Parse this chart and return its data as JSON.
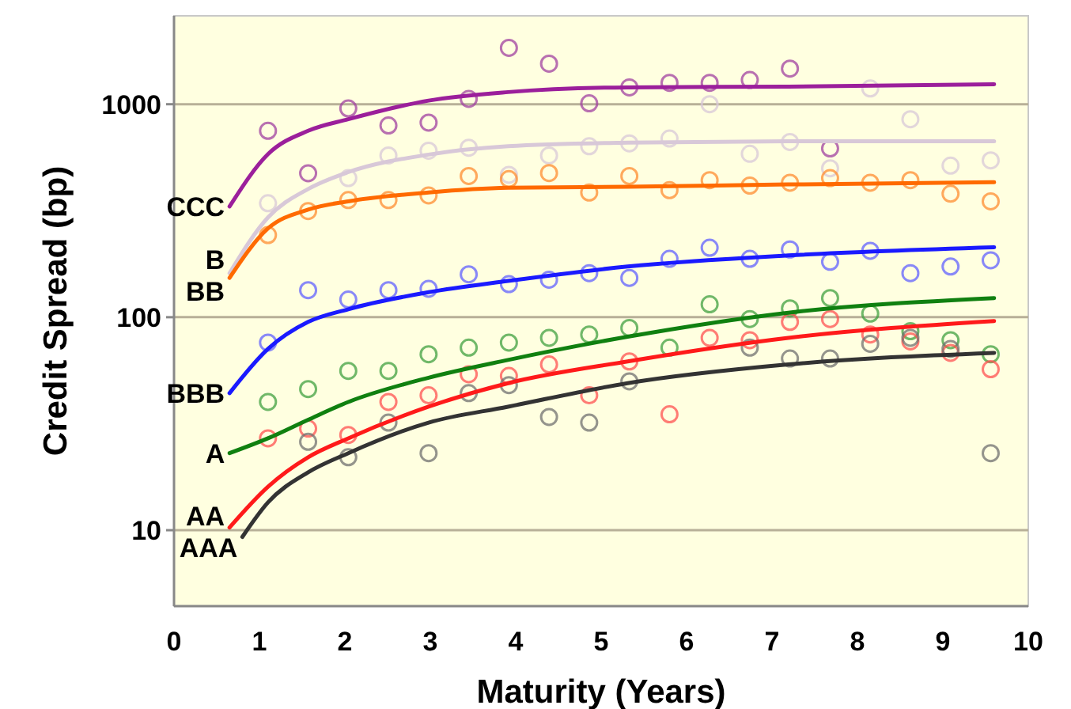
{
  "chart_data": {
    "type": "scatter",
    "xlabel": "Maturity (Years)",
    "ylabel": "Credit Spread (bp)",
    "log": "y",
    "grid": "y",
    "xlim": [
      0,
      10
    ],
    "xticks": [
      0,
      1,
      2,
      3,
      4,
      5,
      6,
      7,
      8,
      9,
      10
    ],
    "ylim": [
      4.4,
      2600
    ],
    "yticks": [
      10,
      100,
      1000
    ],
    "x": [
      1.1,
      1.57,
      2.04,
      2.51,
      2.98,
      3.45,
      3.92,
      4.39,
      4.86,
      5.33,
      5.8,
      6.27,
      6.74,
      7.21,
      7.68,
      8.15,
      8.62,
      9.09,
      9.56
    ],
    "series": [
      {
        "type": "scatter",
        "marker": "circle",
        "color": "#a040a0",
        "values": [
          750,
          474,
          955,
          795,
          820,
          1060,
          1840,
          1550,
          1010,
          1200,
          1260,
          1260,
          1300,
          1470,
          620,
          null,
          null,
          null,
          null
        ]
      },
      {
        "type": "scatter",
        "marker": "circle",
        "color": "#d8c8d8",
        "values": [
          343,
          null,
          450,
          575,
          605,
          625,
          466,
          575,
          635,
          655,
          690,
          1000,
          585,
          665,
          500,
          1185,
          850,
          515,
          545
        ]
      },
      {
        "type": "scatter",
        "marker": "circle",
        "color": "#ff8c30",
        "values": [
          243,
          315,
          355,
          355,
          373,
          460,
          445,
          475,
          385,
          460,
          395,
          440,
          415,
          428,
          450,
          428,
          440,
          380,
          350
        ]
      },
      {
        "type": "scatter",
        "marker": "circle",
        "color": "#6060ff",
        "values": [
          76,
          134,
          121,
          134,
          136,
          159,
          143,
          150,
          161,
          153,
          188,
          212,
          188,
          208,
          182,
          205,
          161,
          173,
          185
        ]
      },
      {
        "type": "scatter",
        "marker": "circle",
        "color": "#40a040",
        "values": [
          40,
          46,
          56,
          56,
          67,
          72,
          76,
          80,
          83,
          89,
          72,
          115,
          98,
          110,
          123,
          104,
          86,
          78,
          67
        ]
      },
      {
        "type": "scatter",
        "marker": "circle",
        "color": "#ff5050",
        "values": [
          27,
          30,
          28,
          40,
          43,
          54,
          53,
          60,
          43,
          62,
          35,
          80,
          78,
          95,
          98,
          83,
          77,
          68,
          57
        ]
      },
      {
        "type": "scatter",
        "marker": "circle",
        "color": "#707070",
        "values": [
          null,
          26,
          22,
          32,
          23,
          44,
          48,
          34,
          32,
          50,
          null,
          null,
          72,
          64,
          64,
          75,
          80,
          71,
          23
        ]
      },
      {
        "type": "line",
        "name": "CCC",
        "color": "#9b1f9b",
        "x": [
          0.65,
          1.1,
          1.57,
          2.04,
          2.98,
          3.91,
          5.31,
          7.19,
          9.6
        ],
        "values": [
          331,
          583,
          750,
          850,
          1040,
          1140,
          1200,
          1210,
          1240
        ]
      },
      {
        "type": "line",
        "name": "B",
        "color": "#d8c8d8",
        "x": [
          0.65,
          1.1,
          1.57,
          2.04,
          2.98,
          3.91,
          5.31,
          7.19,
          9.6
        ],
        "values": [
          161,
          294,
          400,
          480,
          580,
          635,
          660,
          670,
          670
        ]
      },
      {
        "type": "line",
        "name": "BB",
        "color": "#ff6a00",
        "x": [
          0.65,
          1.1,
          1.57,
          2.04,
          2.98,
          3.91,
          5.31,
          7.19,
          9.6
        ],
        "values": [
          153,
          261,
          320,
          350,
          385,
          405,
          410,
          420,
          430
        ]
      },
      {
        "type": "line",
        "name": "BBB",
        "color": "#1a1aff",
        "x": [
          0.65,
          1.1,
          1.57,
          2.04,
          2.98,
          3.91,
          5.31,
          7.19,
          9.6
        ],
        "values": [
          44,
          71,
          95,
          109,
          131,
          148,
          173,
          195,
          213
        ]
      },
      {
        "type": "line",
        "name": "A",
        "color": "#108010",
        "x": [
          0.65,
          1.1,
          1.57,
          2.04,
          2.98,
          3.91,
          5.31,
          7.19,
          9.6
        ],
        "values": [
          23,
          27,
          33,
          40,
          52,
          63,
          81,
          105,
          123
        ]
      },
      {
        "type": "line",
        "name": "AA",
        "color": "#ff1a1a",
        "x": [
          0.65,
          1.1,
          1.57,
          2.04,
          2.98,
          3.91,
          5.31,
          7.19,
          9.6
        ],
        "values": [
          10.3,
          16,
          22,
          27,
          38,
          49,
          62,
          80,
          96
        ]
      },
      {
        "type": "line",
        "name": "AAA",
        "color": "#333333",
        "x": [
          0.8,
          1.1,
          1.57,
          2.04,
          2.98,
          3.91,
          5.31,
          7.19,
          9.6
        ],
        "values": [
          9.3,
          13.5,
          18.7,
          23,
          32,
          38,
          49,
          60,
          68
        ]
      }
    ]
  }
}
